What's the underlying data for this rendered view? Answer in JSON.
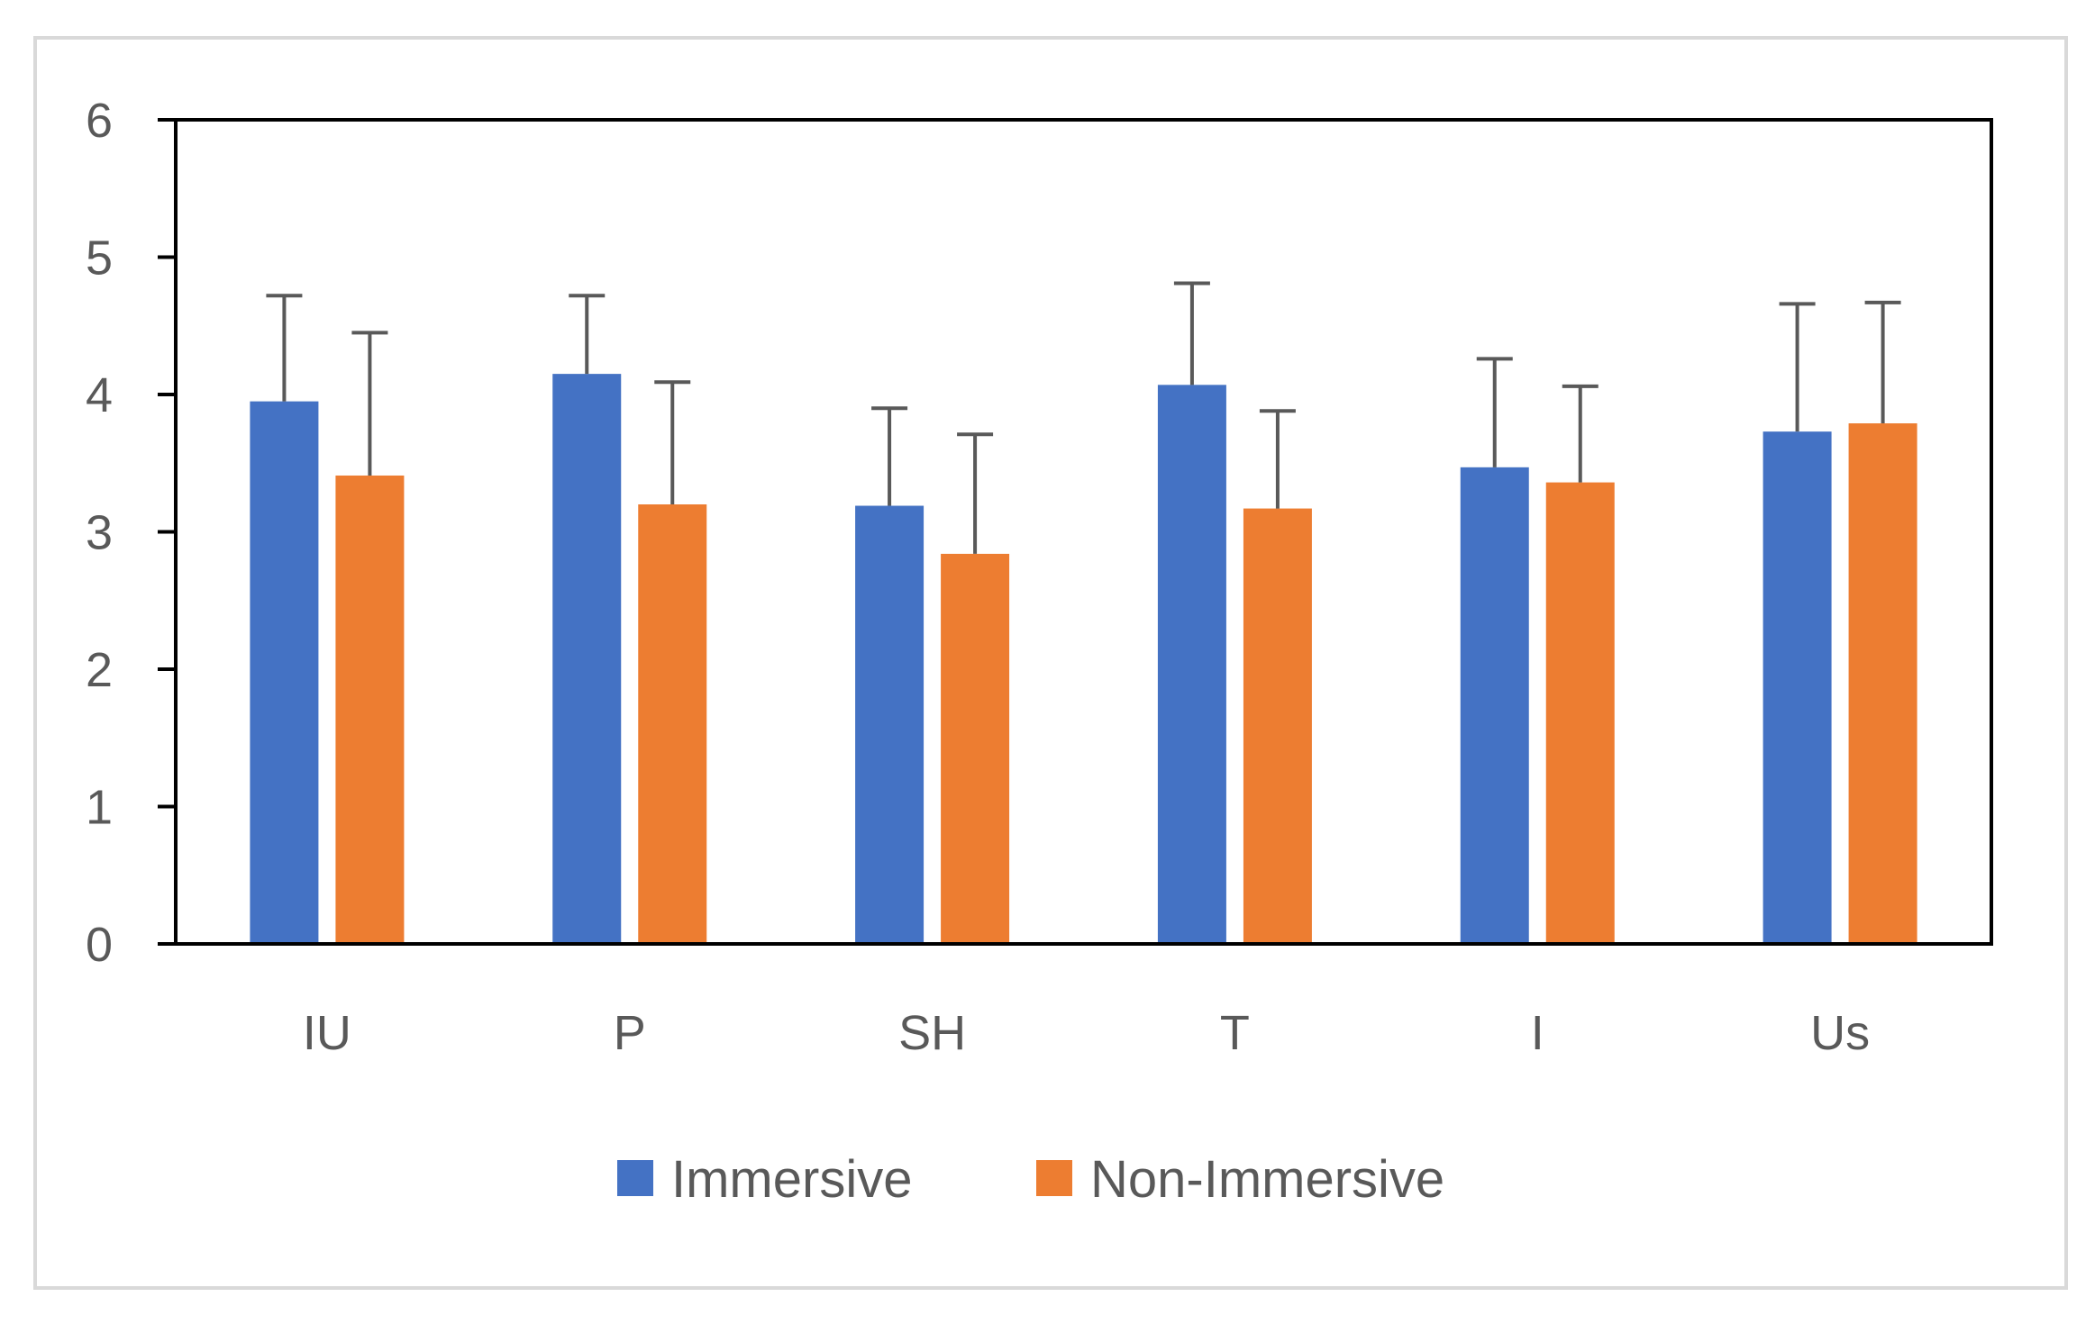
{
  "chart_data": {
    "type": "bar",
    "title": "",
    "xlabel": "",
    "ylabel": "",
    "categories": [
      "IU",
      "P",
      "SH",
      "T",
      "I",
      "Us"
    ],
    "series": [
      {
        "name": "Immersive",
        "color": "#4472c4",
        "values": [
          3.95,
          4.15,
          3.19,
          4.07,
          3.47,
          3.73
        ],
        "error_upper": [
          4.72,
          4.72,
          3.9,
          4.81,
          4.26,
          4.66
        ]
      },
      {
        "name": "Non-Immersive",
        "color": "#ed7d31",
        "values": [
          3.41,
          3.2,
          2.84,
          3.17,
          3.36,
          3.79
        ],
        "error_upper": [
          4.45,
          4.09,
          3.71,
          3.88,
          4.06,
          4.67
        ]
      }
    ],
    "ylim": [
      0,
      6
    ],
    "yticks": [
      0,
      1,
      2,
      3,
      4,
      5,
      6
    ],
    "grid": false,
    "legend_position": "bottom-center",
    "colors": {
      "axis": "#000000",
      "error_bar": "#595959",
      "tick_text": "#595959",
      "frame_border": "#d9d9d9"
    }
  }
}
